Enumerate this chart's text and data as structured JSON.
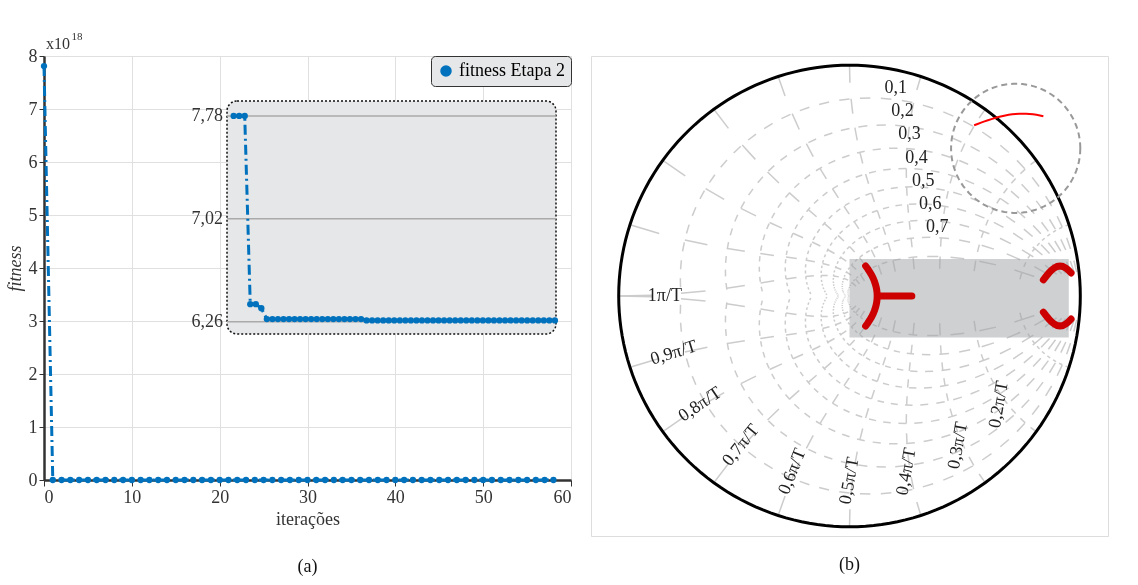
{
  "chart_data": [
    {
      "type": "line",
      "xlabel": "iterações",
      "ylabel": "fitness",
      "x": [
        0,
        1,
        2,
        3,
        4,
        5,
        6,
        7,
        8,
        9,
        10,
        11,
        12,
        13,
        14,
        15,
        16,
        17,
        18,
        19,
        20,
        21,
        22,
        23,
        24,
        25,
        26,
        27,
        28,
        29,
        30,
        31,
        32,
        33,
        34,
        35,
        36,
        37,
        38,
        39,
        40,
        41,
        42,
        43,
        44,
        45,
        46,
        47,
        48,
        49,
        50,
        51,
        52,
        53,
        54,
        55,
        56,
        57,
        58
      ],
      "series": [
        {
          "name": "fitness Etapa 2",
          "color": "#0072bd",
          "values": [
            7.81,
            0,
            0,
            0,
            0,
            0,
            0,
            0,
            0,
            0,
            0,
            0,
            0,
            0,
            0,
            0,
            0,
            0,
            0,
            0,
            0,
            0,
            0,
            0,
            0,
            0,
            0,
            0,
            0,
            0,
            0,
            0,
            0,
            0,
            0,
            0,
            0,
            0,
            0,
            0,
            0,
            0,
            0,
            0,
            0,
            0,
            0,
            0,
            0,
            0,
            0,
            0,
            0,
            0,
            0,
            0,
            0,
            0,
            0
          ]
        }
      ],
      "xlim": [
        0,
        60
      ],
      "xticks": [
        0,
        10,
        20,
        30,
        40,
        50,
        60
      ],
      "ylim": [
        0,
        8
      ],
      "yticks": [
        0,
        1,
        2,
        3,
        4,
        5,
        6,
        7,
        8
      ],
      "grid": true,
      "legend": "top right",
      "marker": "circle",
      "line_style": "dashed",
      "annotations": [
        "x10$^{18}$",
        "(a)"
      ]
    },
    {
      "type": "line",
      "categories": [
        null,
        null,
        null,
        null,
        null,
        null,
        null,
        null,
        null,
        null,
        null,
        null,
        null,
        null,
        null,
        null,
        null,
        null,
        null,
        null,
        null,
        null,
        null,
        null,
        null,
        null,
        null,
        null,
        null,
        null,
        null,
        null,
        null,
        null,
        null,
        null,
        null,
        null,
        null,
        null,
        null,
        null,
        null,
        null,
        null,
        null,
        null,
        null,
        null,
        null,
        null,
        null,
        null,
        null,
        null,
        null,
        null,
        null,
        null
      ],
      "series": [
        {
          "color": "#0072bd",
          "values": [
            7.78,
            7.78,
            7.78,
            6.39,
            6.39,
            6.36,
            6.28,
            6.28,
            6.28,
            6.28,
            6.28,
            6.28,
            6.28,
            6.28,
            6.28,
            6.28,
            6.28,
            6.28,
            6.28,
            6.28,
            6.28,
            6.28,
            6.28,
            6.28,
            6.27,
            6.27,
            6.27,
            6.27,
            6.27,
            6.27,
            6.27,
            6.27,
            6.27,
            6.27,
            6.27,
            6.27,
            6.27,
            6.27,
            6.27,
            6.27,
            6.27,
            6.27,
            6.27,
            6.27,
            6.27,
            6.27,
            6.27,
            6.27,
            6.27,
            6.27,
            6.27,
            6.27,
            6.27,
            6.27,
            6.27,
            6.27,
            6.27,
            6.27,
            6.27
          ]
        }
      ],
      "ylim": [
        6.17,
        7.89
      ],
      "yticks": [
        {
          "value": 6.26,
          "label": "6,26"
        },
        {
          "value": 7.02,
          "label": "7,02"
        },
        {
          "value": 7.78,
          "label": "7,78"
        }
      ],
      "grid": "y",
      "marker": "circle",
      "line_style": "dashed",
      "tick_labels": "y"
    },
    {
      "type": "other",
      "annotations": [
        "0,1",
        "0,2",
        "0,3",
        "0,4",
        "0,5",
        "0,6",
        "0,7",
        "1π/T",
        "0,9π/T",
        "0,8π/T",
        "0,7π/T",
        "0,6π/T",
        "0,5π/T",
        "0,4π/T",
        "0,3π/T",
        "0,2π/T",
        "(b)"
      ]
    }
  ]
}
